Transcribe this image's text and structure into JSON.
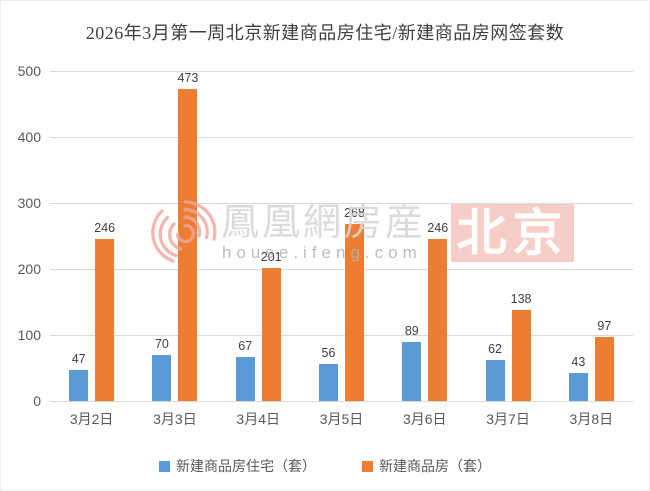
{
  "title": "2026年3月第一周北京新建商品房住宅/新建商品房网签套数",
  "chart_data": {
    "type": "bar",
    "categories": [
      "3月2日",
      "3月3日",
      "3月4日",
      "3月5日",
      "3月6日",
      "3月7日",
      "3月8日"
    ],
    "series": [
      {
        "name": "新建商品房住宅（套）",
        "color": "#5b9bd5",
        "values": [
          47,
          70,
          67,
          56,
          89,
          62,
          43
        ]
      },
      {
        "name": "新建商品房（套）",
        "color": "#ed7d31",
        "values": [
          246,
          473,
          201,
          268,
          246,
          138,
          97
        ]
      }
    ],
    "title": "2026年3月第一周北京新建商品房住宅/新建商品房网签套数",
    "xlabel": "",
    "ylabel": "",
    "ylim": [
      0,
      500
    ],
    "ytick_step": 100,
    "yticks": [
      0,
      100,
      200,
      300,
      400,
      500
    ],
    "grid": true,
    "legend_position": "bottom",
    "value_labels": true
  },
  "watermark": {
    "logo": "phoenix-icon",
    "brand_text": "鳳凰網房産",
    "url_text": "house.ifeng.com",
    "city_text": "北京",
    "city_bg_color": "#f6c9c3",
    "logo_color": "#efa69d",
    "brand_text_color": "#d6d6d6"
  },
  "colors": {
    "background": "#ffffff",
    "gridline": "#d9d9d9",
    "axis_text": "#595959",
    "title_text": "#3f3f3f",
    "value_label_text": "#404040"
  }
}
